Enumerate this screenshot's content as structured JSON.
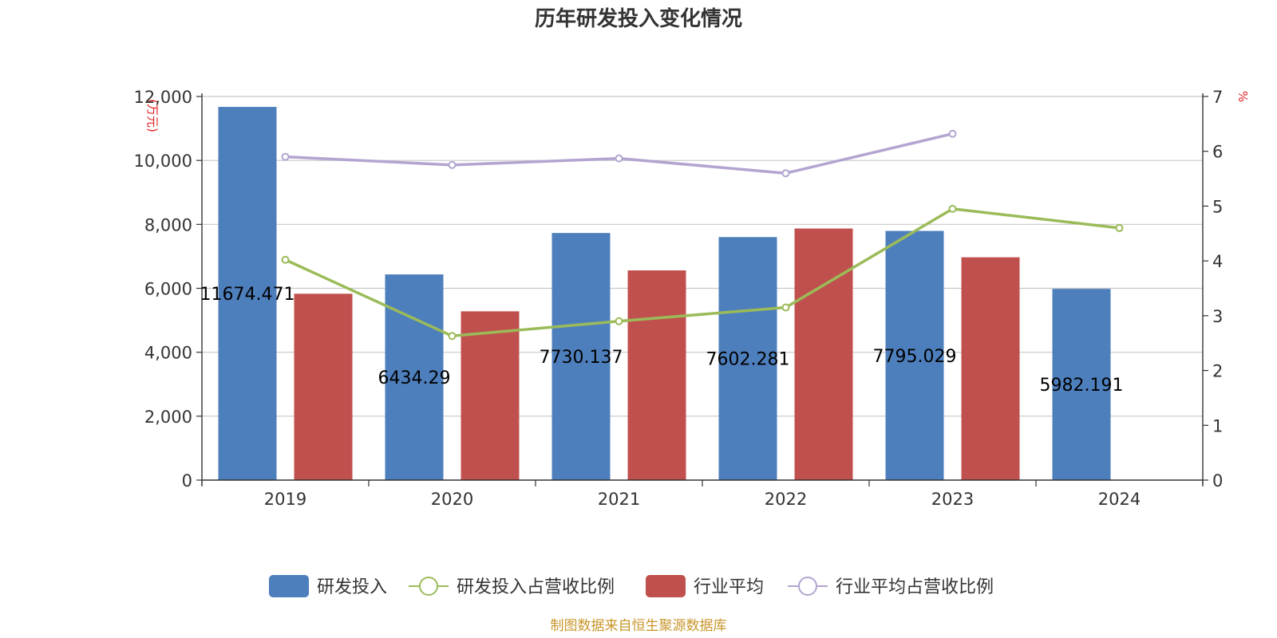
{
  "chart_data": {
    "type": "bar",
    "title": "历年研发投入变化情况",
    "categories": [
      "2019",
      "2020",
      "2021",
      "2022",
      "2023",
      "2024"
    ],
    "y_left": {
      "unit_label": "(万元)",
      "ylim": [
        0,
        12000
      ],
      "ticks": [
        0,
        2000,
        4000,
        6000,
        8000,
        10000,
        12000
      ],
      "tick_labels": [
        "0",
        "2,000",
        "4,000",
        "6,000",
        "8,000",
        "10,000",
        "12,000"
      ]
    },
    "y_right": {
      "unit_label": "%",
      "ylim": [
        0,
        7
      ],
      "ticks": [
        0,
        1,
        2,
        3,
        4,
        5,
        6,
        7
      ],
      "tick_labels": [
        "0",
        "1",
        "2",
        "3",
        "4",
        "5",
        "6",
        "7"
      ]
    },
    "series": [
      {
        "name": "研发投入",
        "type": "bar",
        "axis": "left",
        "color": "#4e7fbd",
        "values": [
          11674.471,
          6434.29,
          7730.137,
          7602.281,
          7795.029,
          5982.191
        ],
        "labels": [
          "11674.471",
          "6434.29",
          "7730.137",
          "7602.281",
          "7795.029",
          "5982.191"
        ]
      },
      {
        "name": "研发投入占营收比例",
        "type": "line",
        "axis": "right",
        "color": "#9bbb59",
        "values": [
          4.02,
          2.63,
          2.9,
          3.15,
          4.95,
          4.6
        ]
      },
      {
        "name": "行业平均",
        "type": "bar",
        "axis": "left",
        "color": "#c0504d",
        "values": [
          5830,
          5280,
          6560,
          7870,
          6970,
          null
        ]
      },
      {
        "name": "行业平均占营收比例",
        "type": "line",
        "axis": "right",
        "color": "#b3a4d0",
        "values": [
          5.9,
          5.75,
          5.87,
          5.6,
          6.32,
          null
        ]
      }
    ],
    "grid": true,
    "legend_position": "bottom-center"
  },
  "footer": {
    "source": "制图数据来自恒生聚源数据库"
  }
}
